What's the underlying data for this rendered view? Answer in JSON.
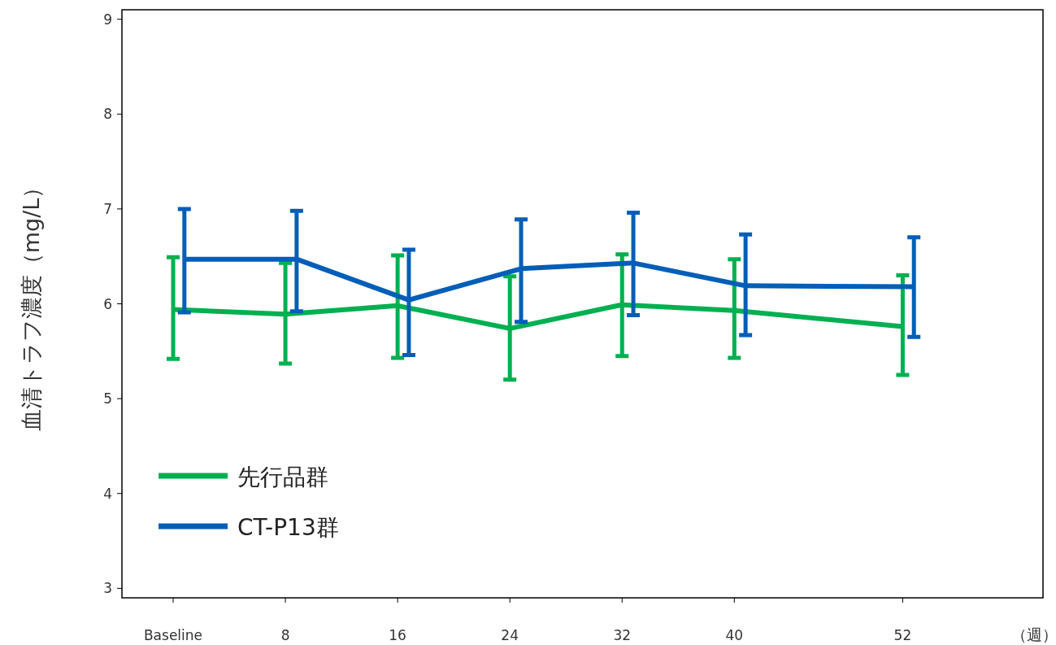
{
  "chart_data": {
    "type": "line",
    "ylabel": "血清トラフ濃度（mg/L）",
    "xlabel": "（週）",
    "x": [
      0,
      8,
      16,
      24,
      32,
      40,
      52
    ],
    "xlim": [
      -3.65,
      62
    ],
    "xticks": [
      {
        "value": 0,
        "label": "Baseline"
      },
      8,
      16,
      24,
      32,
      40,
      52
    ],
    "ylim": [
      2.9,
      9.1
    ],
    "yticks": [
      3,
      4,
      5,
      6,
      7,
      8,
      9
    ],
    "grid": false,
    "legend": "bottom left",
    "marker": "none",
    "line_style": "solid",
    "series": [
      {
        "name": "先行品群",
        "color": "#00b050",
        "values": [
          5.94,
          5.89,
          5.98,
          5.74,
          5.99,
          5.93,
          5.76
        ],
        "errors": [
          [
            5.42,
            6.49
          ],
          [
            5.37,
            6.43
          ],
          [
            5.43,
            6.51
          ],
          [
            5.2,
            6.29
          ],
          [
            5.45,
            6.52
          ],
          [
            5.43,
            6.47
          ],
          [
            5.25,
            6.3
          ]
        ]
      },
      {
        "name": "CT-P13群",
        "color": "#005eb8",
        "x": [
          0.8,
          8.8,
          16.8,
          24.8,
          32.8,
          40.8,
          52.8
        ],
        "values": [
          6.47,
          6.47,
          6.04,
          6.37,
          6.43,
          6.19,
          6.18
        ],
        "errors": [
          [
            5.91,
            7.0
          ],
          [
            5.92,
            6.98
          ],
          [
            5.46,
            6.57
          ],
          [
            5.81,
            6.89
          ],
          [
            5.88,
            6.96
          ],
          [
            5.67,
            6.73
          ],
          [
            5.65,
            6.7
          ]
        ]
      }
    ]
  }
}
